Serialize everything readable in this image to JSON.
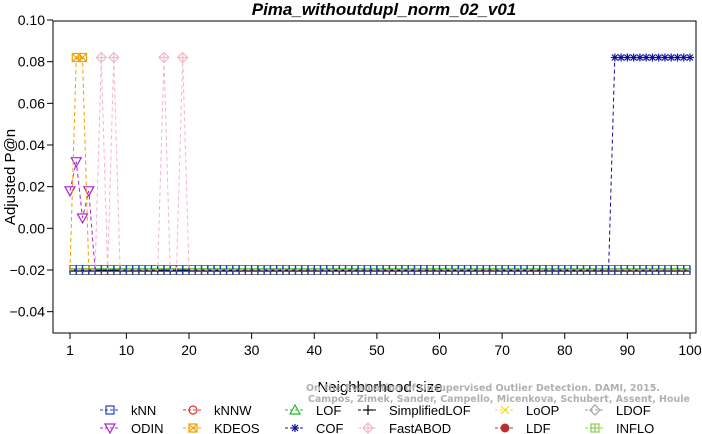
{
  "chart_data": {
    "type": "line",
    "title": "Pima_withoutdupl_norm_02_v01",
    "xlabel": "Neighborhood size",
    "ylabel": "Adjusted P@n",
    "xlim": [
      0,
      101
    ],
    "ylim": [
      -0.05,
      0.1
    ],
    "xticks": [
      1,
      10,
      20,
      30,
      40,
      50,
      60,
      70,
      80,
      90,
      100
    ],
    "yticks": [
      -0.04,
      -0.02,
      0.0,
      0.02,
      0.04,
      0.06,
      0.08,
      0.1
    ],
    "ytick_labels": [
      "−0.04",
      "−0.02",
      "0.00",
      "0.02",
      "0.04",
      "0.06",
      "0.08",
      "0.10"
    ],
    "grid": false,
    "legend_position": "bottom",
    "baseline": -0.02,
    "series": [
      {
        "name": "kNN",
        "color": "#1f3fbf",
        "marker": "square",
        "points": []
      },
      {
        "name": "kNNW",
        "color": "#e03030",
        "marker": "circle",
        "points": []
      },
      {
        "name": "LOF",
        "color": "#28b828",
        "marker": "triangle",
        "points": []
      },
      {
        "name": "SimplifiedLOF",
        "color": "#000000",
        "marker": "plus",
        "points": []
      },
      {
        "name": "LoOP",
        "color": "#e8e028",
        "marker": "x",
        "points": []
      },
      {
        "name": "LDOF",
        "color": "#a0a0a0",
        "marker": "diamond",
        "points": []
      },
      {
        "name": "ODIN",
        "color": "#b020d0",
        "marker": "triangle-down",
        "points": [
          [
            1,
            0.018
          ],
          [
            2,
            0.032
          ],
          [
            3,
            0.005
          ],
          [
            4,
            0.018
          ]
        ]
      },
      {
        "name": "KDEOS",
        "color": "#f0a000",
        "marker": "square-x",
        "points": [
          [
            2,
            0.082
          ],
          [
            3,
            0.082
          ]
        ]
      },
      {
        "name": "COF",
        "color": "#10109a",
        "marker": "asterisk",
        "points": [
          [
            88,
            0.082
          ],
          [
            89,
            0.082
          ],
          [
            90,
            0.082
          ],
          [
            91,
            0.082
          ],
          [
            92,
            0.082
          ],
          [
            93,
            0.082
          ],
          [
            94,
            0.082
          ],
          [
            95,
            0.082
          ],
          [
            96,
            0.082
          ],
          [
            97,
            0.082
          ],
          [
            98,
            0.082
          ],
          [
            99,
            0.082
          ],
          [
            100,
            0.082
          ]
        ]
      },
      {
        "name": "FastABOD",
        "color": "#f4b8c4",
        "marker": "diamond-plus",
        "points": [
          [
            6,
            0.082
          ],
          [
            8,
            0.082
          ],
          [
            16,
            0.082
          ],
          [
            19,
            0.082
          ]
        ]
      },
      {
        "name": "LDF",
        "color": "#b83030",
        "marker": "circle-filled",
        "points": []
      },
      {
        "name": "INFLO",
        "color": "#88d040",
        "marker": "square-cross",
        "points": []
      }
    ]
  },
  "watermark": {
    "line1": "Campos, Zimek, Sander, Campello, Micenkova, Schubert, Assent, Houle",
    "line2": "On the Evaluation of Unsupervised Outlier Detection. DAMI, 2015."
  }
}
